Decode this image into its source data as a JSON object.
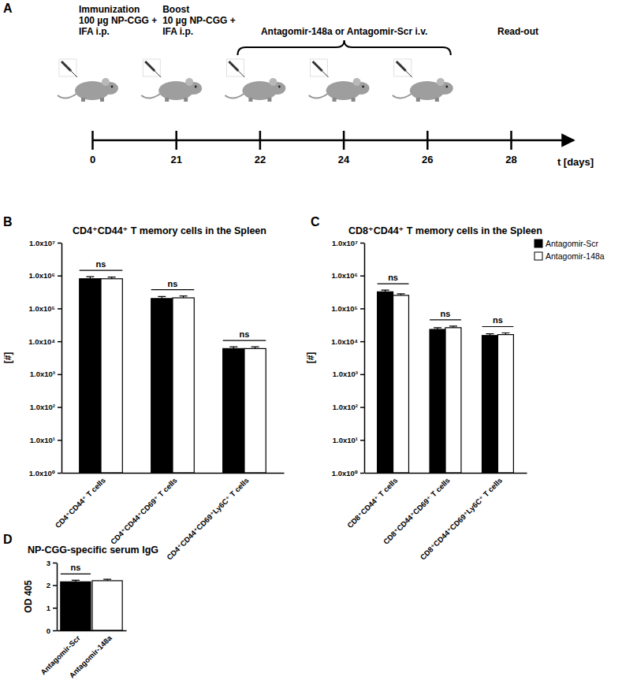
{
  "chart_data": [
    {
      "type": "timeline",
      "panel": "A",
      "categories": [
        "0",
        "21",
        "22",
        "24",
        "26",
        "28"
      ],
      "xlabel": "t [days]",
      "annotations": [
        [
          "Immunization",
          "100 µg NP-CGG +",
          "IFA i.p."
        ],
        [
          "Boost",
          "10 µg NP-CGG +",
          "IFA i.p."
        ],
        null,
        null,
        null,
        [
          "Read-out"
        ]
      ],
      "bracket": {
        "text": "Antagomir-148a or Antagomir-Scr i.v.",
        "from": "22",
        "to": "26"
      }
    },
    {
      "type": "bar",
      "panel": "B",
      "title": "CD4⁺CD44⁺ T memory cells in the Spleen",
      "ylabel": "[#]",
      "categories": [
        "CD4⁺CD44⁺ T cells",
        "CD4⁺CD44⁺CD69⁺ T cells",
        "CD4⁺CD44⁺CD69⁺Ly6C⁺ T cells"
      ],
      "series": [
        {
          "color": "#000000",
          "values": [
            800000,
            200000,
            6000
          ],
          "errors": [
            120000,
            30000,
            800
          ]
        },
        {
          "color": "#ffffff",
          "values": [
            800000,
            210000,
            6000
          ],
          "errors": [
            100000,
            30000,
            800
          ]
        }
      ],
      "annotations": [
        "ns",
        "ns",
        "ns"
      ],
      "log": "y",
      "ylim": [
        1,
        10000000
      ],
      "yticks": [
        {
          "value": 1,
          "label": "1.0x10⁰"
        },
        {
          "value": 10,
          "label": "1.0x10¹"
        },
        {
          "value": 100,
          "label": "1.0x10²"
        },
        {
          "value": 1000,
          "label": "1.0x10³"
        },
        {
          "value": 10000,
          "label": "1.0x10⁴"
        },
        {
          "value": 100000,
          "label": "1.0x10⁵"
        },
        {
          "value": 1000000,
          "label": "1.0x10⁶"
        },
        {
          "value": 10000000,
          "label": "1.0x10⁷"
        }
      ]
    },
    {
      "type": "bar",
      "panel": "C",
      "title": "CD8⁺CD44⁺ T memory cells in the Spleen",
      "ylabel": "[#]",
      "categories": [
        "CD8⁺CD44⁺ T cells",
        "CD8⁺CD44⁺CD69⁺ T cells",
        "CD8⁺CD44⁺CD69⁺Ly6C⁺ T cells"
      ],
      "series": [
        {
          "name": "Antagomir-Scr",
          "color": "#000000",
          "values": [
            320000,
            23000,
            15000
          ],
          "errors": [
            40000,
            3000,
            2000
          ]
        },
        {
          "name": "Antagomir-148a",
          "color": "#ffffff",
          "values": [
            250000,
            26000,
            16000
          ],
          "errors": [
            30000,
            3000,
            2000
          ]
        }
      ],
      "annotations": [
        "ns",
        "ns",
        "ns"
      ],
      "legend": "top-right",
      "log": "y",
      "ylim": [
        1,
        10000000
      ],
      "yticks": [
        {
          "value": 1,
          "label": "1.0x10⁰"
        },
        {
          "value": 10,
          "label": "1.0x10¹"
        },
        {
          "value": 100,
          "label": "1.0x10²"
        },
        {
          "value": 1000,
          "label": "1.0x10³"
        },
        {
          "value": 10000,
          "label": "1.0x10⁴"
        },
        {
          "value": 100000,
          "label": "1.0x10⁵"
        },
        {
          "value": 1000000,
          "label": "1.0x10⁶"
        },
        {
          "value": 10000000,
          "label": "1.0x10⁷"
        }
      ]
    },
    {
      "type": "bar",
      "panel": "D",
      "title": "NP-CGG-specific serum IgG",
      "ylabel": "OD 405",
      "categories": [
        "Antagomir-Scr",
        "Antagomir-148a"
      ],
      "values": [
        2.15,
        2.2
      ],
      "errors": [
        0.07,
        0.06
      ],
      "colors": [
        "#000000",
        "#ffffff"
      ],
      "annotations": [
        "ns"
      ],
      "ylim": [
        0,
        3
      ],
      "yticks": [
        0,
        1,
        2,
        3
      ]
    }
  ]
}
